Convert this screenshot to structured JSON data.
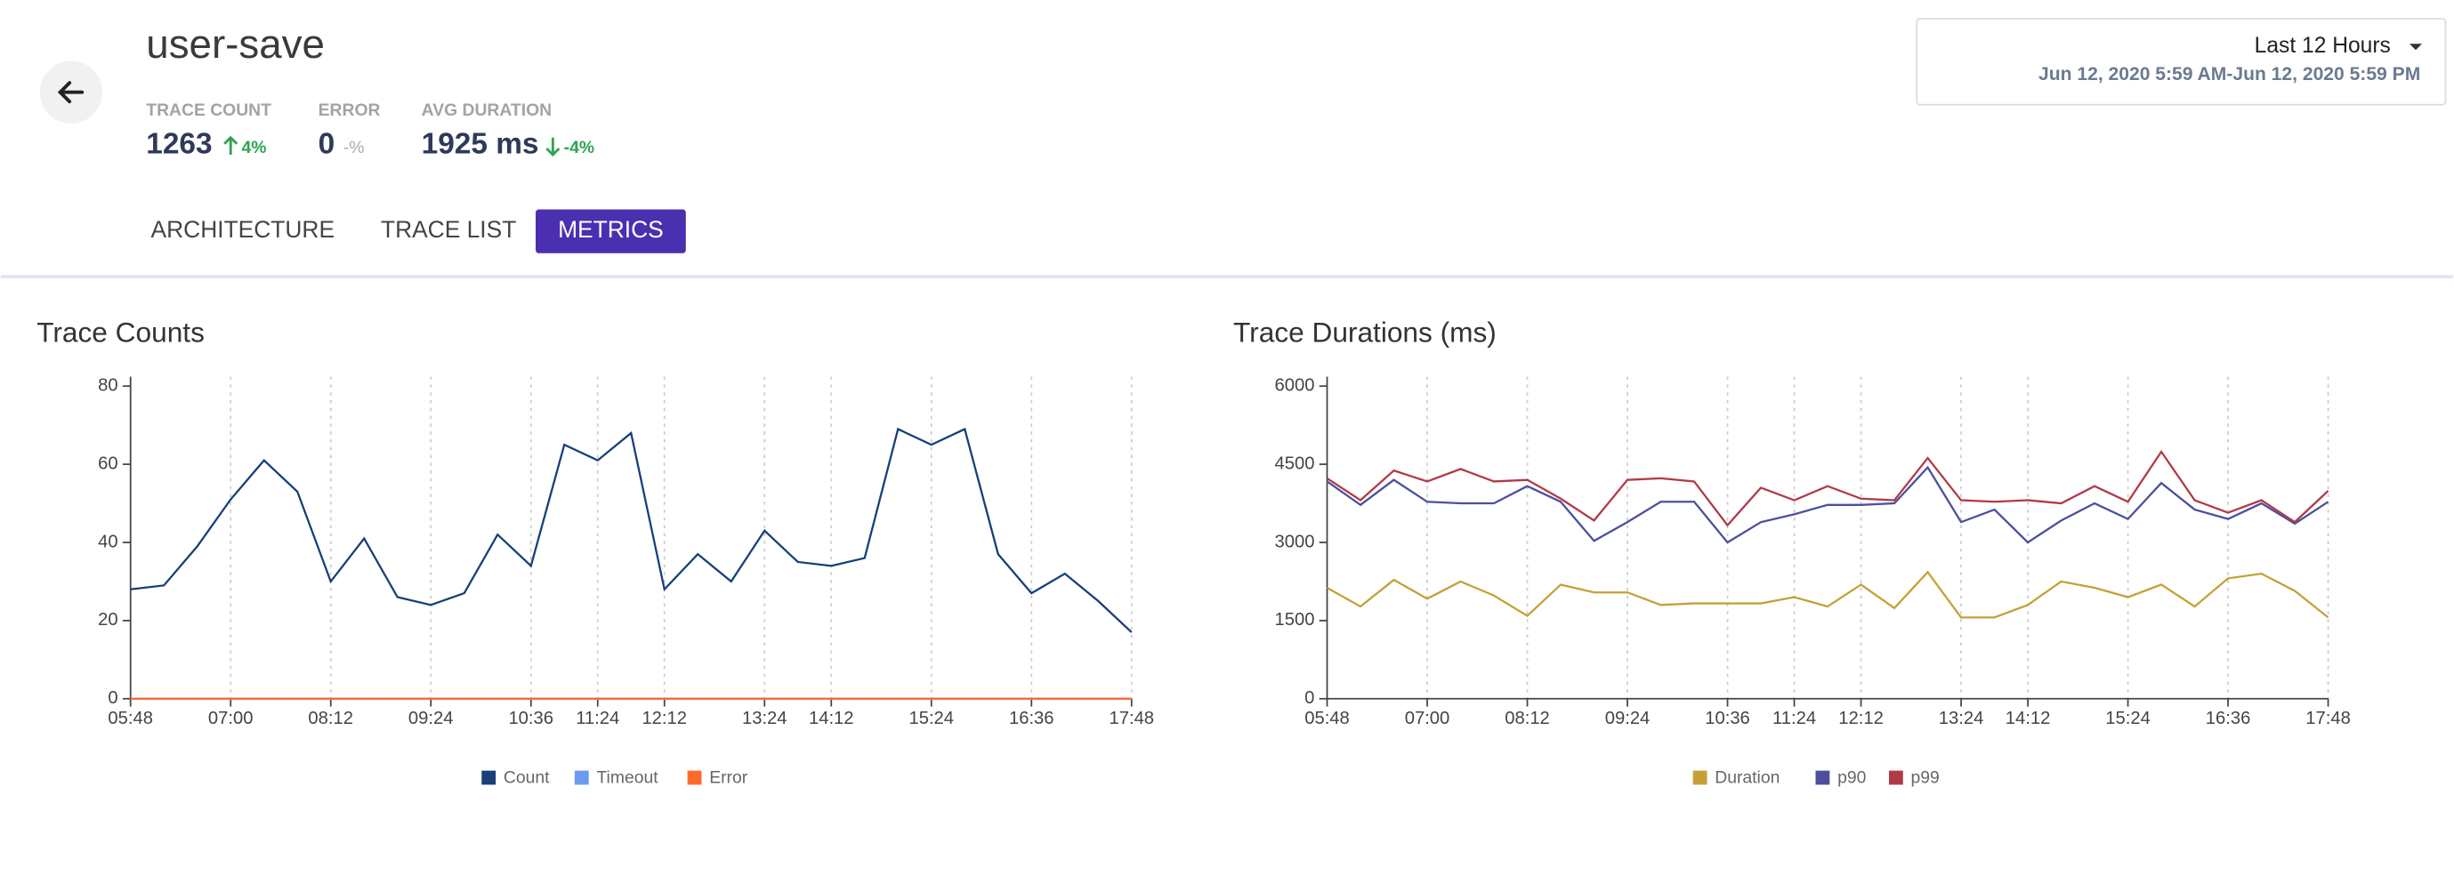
{
  "header": {
    "title": "user-save",
    "stats": [
      {
        "label": "TRACE COUNT",
        "value": "1263",
        "change": "4%"
      },
      {
        "label": "ERROR",
        "value": "0",
        "change": "-%"
      },
      {
        "label": "AVG DURATION",
        "value": "1925 ms",
        "change": "-4%"
      }
    ],
    "range": {
      "label": "Last 12 Hours",
      "dates": "Jun 12, 2020 5:59 AM-Jun 12, 2020 5:59 PM"
    }
  },
  "tabs": [
    "ARCHITECTURE",
    "TRACE LIST",
    "METRICS"
  ],
  "chart_data": [
    {
      "type": "line",
      "title": "Trace Counts",
      "categories": [
        "05:48",
        null,
        null,
        "07:00",
        null,
        null,
        "08:12",
        null,
        null,
        "09:24",
        null,
        null,
        "10:36",
        null,
        "11:24",
        null,
        "12:12",
        null,
        null,
        "13:24",
        null,
        "14:12",
        null,
        null,
        "15:24",
        null,
        null,
        "16:36",
        null,
        null,
        "17:48"
      ],
      "series": [
        {
          "name": "Count",
          "color": "#173f7a",
          "values": [
            28,
            29,
            39,
            51,
            61,
            53,
            30,
            41,
            26,
            24,
            27,
            42,
            34,
            65,
            61,
            68,
            28,
            37,
            30,
            43,
            35,
            34,
            36,
            69,
            65,
            69,
            37,
            27,
            32,
            25,
            17
          ]
        },
        {
          "name": "Timeout",
          "color": "#6b9bef",
          "values": [
            0,
            0,
            0,
            0,
            0,
            0,
            0,
            0,
            0,
            0,
            0,
            0,
            0,
            0,
            0,
            0,
            0,
            0,
            0,
            0,
            0,
            0,
            0,
            0,
            0,
            0,
            0,
            0,
            0,
            0,
            0
          ]
        },
        {
          "name": "Error",
          "color": "#ff6a2c",
          "values": [
            0,
            0,
            0,
            0,
            0,
            0,
            0,
            0,
            0,
            0,
            0,
            0,
            0,
            0,
            0,
            0,
            0,
            0,
            0,
            0,
            0,
            0,
            0,
            0,
            0,
            0,
            0,
            0,
            0,
            0,
            0
          ]
        }
      ],
      "ylim": [
        0,
        80
      ],
      "yticks": [
        0,
        20,
        40,
        60,
        80
      ],
      "grid": true
    },
    {
      "type": "line",
      "title": "Trace Durations (ms)",
      "categories": [
        "05:48",
        null,
        null,
        "07:00",
        null,
        null,
        "08:12",
        null,
        null,
        "09:24",
        null,
        null,
        "10:36",
        null,
        "11:24",
        null,
        "12:12",
        null,
        null,
        "13:24",
        null,
        "14:12",
        null,
        null,
        "15:24",
        null,
        null,
        "16:36",
        null,
        null,
        "17:48"
      ],
      "series": [
        {
          "name": "Duration",
          "color": "#c4a135",
          "values": [
            2130,
            1770,
            2280,
            1920,
            2250,
            1980,
            1590,
            2190,
            2040,
            2040,
            1800,
            1830,
            1830,
            1830,
            1950,
            1770,
            2190,
            1740,
            2430,
            1560,
            1560,
            1800,
            2250,
            2130,
            1950,
            2190,
            1770,
            2310,
            2400,
            2070,
            1560
          ]
        },
        {
          "name": "p90",
          "color": "#4b4f9e",
          "values": [
            4170,
            3720,
            4200,
            3780,
            3750,
            3750,
            4080,
            3780,
            3030,
            3390,
            3780,
            3780,
            3000,
            3390,
            3540,
            3720,
            3720,
            3750,
            4440,
            3390,
            3630,
            3000,
            3420,
            3750,
            3450,
            4140,
            3630,
            3450,
            3750,
            3360,
            3780
          ]
        },
        {
          "name": "p99",
          "color": "#b03a48",
          "values": [
            4230,
            3810,
            4380,
            4170,
            4410,
            4170,
            4200,
            3840,
            3420,
            4200,
            4230,
            4170,
            3330,
            4050,
            3810,
            4080,
            3840,
            3810,
            4620,
            3810,
            3780,
            3810,
            3750,
            4080,
            3780,
            4740,
            3810,
            3570,
            3810,
            3390,
            3990
          ]
        }
      ],
      "ylim": [
        0,
        6000
      ],
      "yticks": [
        0,
        1500,
        3000,
        4500,
        6000
      ],
      "grid": true
    }
  ]
}
